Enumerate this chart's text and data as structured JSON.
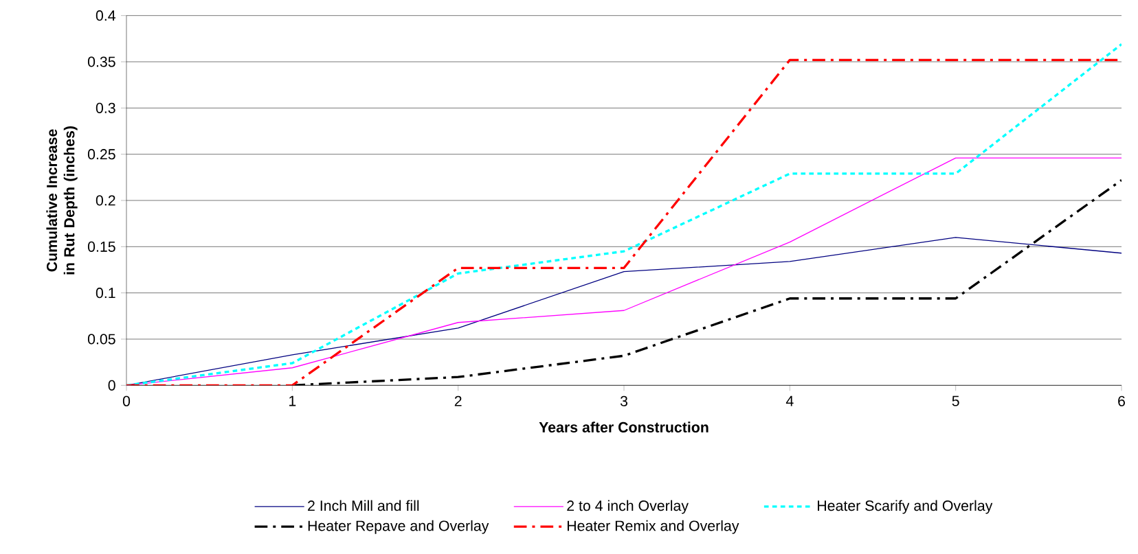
{
  "chart_data": {
    "type": "line",
    "xlabel": "Years after Construction",
    "ylabel": "Cumulative Increase in Rut Depth (inches)",
    "x": [
      0,
      1,
      2,
      3,
      4,
      5,
      6
    ],
    "series": [
      {
        "name": "2 Inch Mill and fill",
        "color": "#000080",
        "line_style": "solid",
        "values": [
          0,
          0.033,
          0.062,
          0.123,
          0.134,
          0.16,
          0.143
        ]
      },
      {
        "name": "2 to 4 inch Overlay",
        "color": "#ff00ff",
        "line_style": "solid",
        "values": [
          0,
          0.019,
          0.068,
          0.081,
          0.155,
          0.246,
          0.246
        ]
      },
      {
        "name": "Heater Scarify and Overlay",
        "color": "#00ffff",
        "line_style": "dotted",
        "values": [
          0,
          0.024,
          0.121,
          0.145,
          0.229,
          0.229,
          0.369
        ]
      },
      {
        "name": "Heater Repave and Overlay",
        "color": "#000000",
        "line_style": "dashdot",
        "values": [
          null,
          0,
          0.009,
          0.032,
          0.094,
          0.094,
          0.222
        ]
      },
      {
        "name": "Heater Remix and Overlay",
        "color": "#ff0000",
        "line_style": "dashdot",
        "values": [
          0,
          0,
          0.127,
          0.127,
          0.352,
          0.352,
          0.352
        ]
      }
    ],
    "xlim": [
      0,
      6
    ],
    "xticks": [
      0,
      1,
      2,
      3,
      4,
      5,
      6
    ],
    "ylim": [
      0,
      0.4
    ],
    "yticks": [
      0,
      0.05,
      0.1,
      0.15,
      0.2,
      0.25,
      0.3,
      0.35,
      0.4
    ],
    "grid": "y",
    "legend": "bottom",
    "marker": "none"
  }
}
